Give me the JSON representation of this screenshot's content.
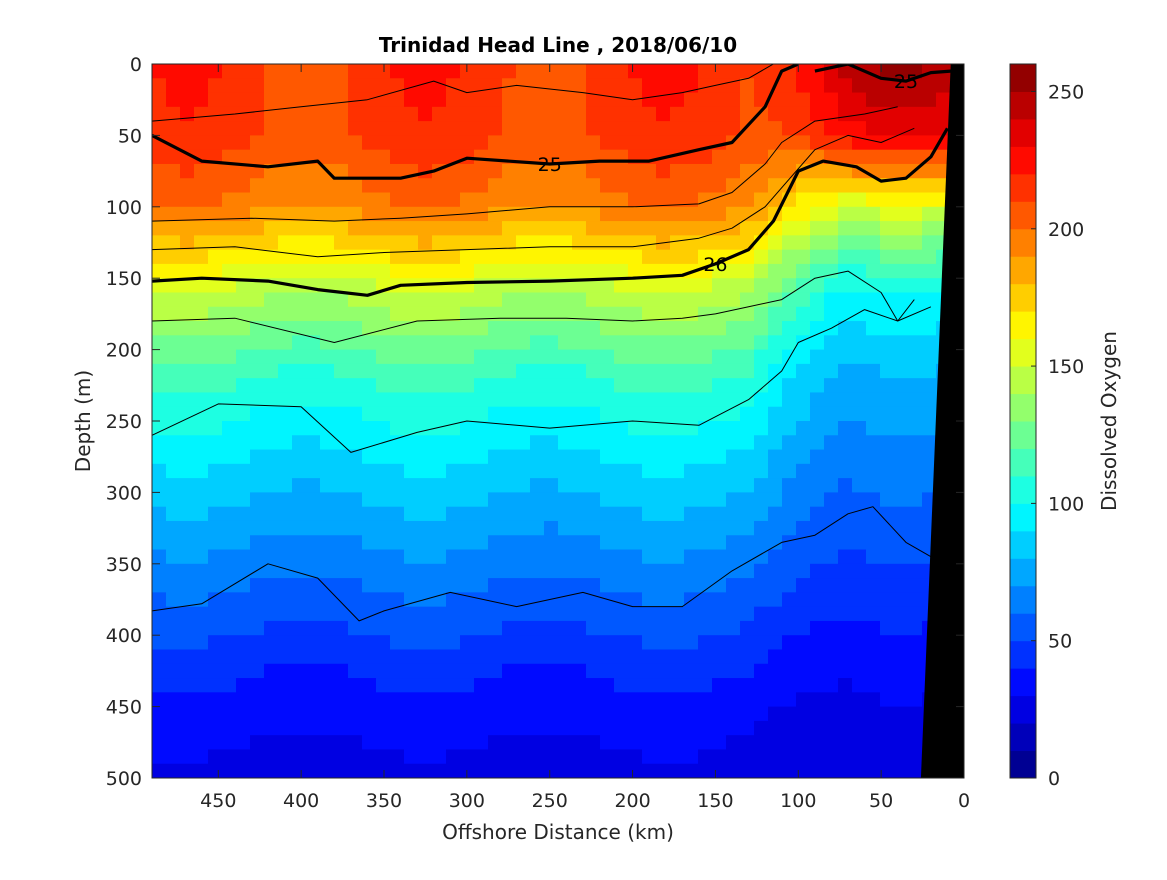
{
  "chart_data": {
    "type": "heatmap",
    "title": "Trinidad Head Line , 2018/06/10",
    "xlabel": "Offshore Distance (km)",
    "ylabel": "Depth (m)",
    "colorbar_label": "Dissolved Oxygen",
    "xlim": [
      490,
      0
    ],
    "ylim": [
      0,
      500
    ],
    "y_reversed": true,
    "x_reversed": true,
    "x_ticks": [
      450,
      400,
      350,
      300,
      250,
      200,
      150,
      100,
      50,
      0
    ],
    "y_ticks": [
      0,
      50,
      100,
      150,
      200,
      250,
      300,
      350,
      400,
      450,
      500
    ],
    "colorbar_ticks": [
      0,
      50,
      100,
      150,
      200,
      250
    ],
    "colorbar_range": [
      0,
      260
    ],
    "colorbar_levels": 26,
    "bathymetry_color": "#000000",
    "bathymetry_x": [
      26,
      8
    ],
    "oxygen_profile": {
      "depth": [
        0,
        50,
        100,
        130,
        160,
        220,
        290,
        360,
        430,
        500
      ],
      "oxygen": [
        215,
        212,
        195,
        170,
        145,
        110,
        85,
        62,
        40,
        25
      ],
      "nearshore_oxygen": [
        245,
        225,
        150,
        120,
        95,
        75,
        60,
        45,
        30,
        20
      ]
    },
    "isopycnals": [
      {
        "label": "25",
        "x": [
          490,
          460,
          420,
          390,
          380,
          340,
          320,
          300,
          250,
          220,
          190,
          160,
          140,
          120,
          110,
          100
        ],
        "depth": [
          50,
          68,
          72,
          68,
          80,
          80,
          75,
          66,
          70,
          68,
          68,
          60,
          55,
          30,
          5,
          0
        ]
      },
      {
        "label": "25",
        "x": [
          90,
          70,
          50,
          35,
          20,
          8
        ],
        "depth": [
          5,
          0,
          10,
          12,
          6,
          5
        ]
      },
      {
        "label": "26",
        "x": [
          490,
          460,
          420,
          390,
          360,
          340,
          300,
          250,
          200,
          170,
          150,
          130,
          115,
          100,
          85,
          65,
          50,
          35,
          20,
          10
        ],
        "depth": [
          152,
          150,
          152,
          158,
          162,
          155,
          153,
          152,
          150,
          148,
          140,
          130,
          110,
          75,
          68,
          72,
          82,
          80,
          65,
          45
        ]
      },
      {
        "label": "",
        "x": [
          490,
          450,
          400,
          370,
          330,
          300,
          250,
          200,
          160,
          130,
          110,
          100,
          80,
          60,
          40,
          30
        ],
        "depth": [
          260,
          238,
          240,
          272,
          258,
          250,
          255,
          250,
          253,
          235,
          215,
          195,
          185,
          172,
          180,
          165
        ]
      },
      {
        "label": "",
        "x": [
          490,
          460,
          420,
          390,
          365,
          350,
          310,
          270,
          230,
          200,
          170,
          140,
          110,
          90,
          70,
          55,
          35,
          20
        ],
        "depth": [
          383,
          378,
          350,
          360,
          390,
          383,
          370,
          380,
          370,
          380,
          380,
          355,
          335,
          330,
          315,
          310,
          335,
          345
        ]
      },
      {
        "label": "",
        "x": [
          490,
          440,
          380,
          330,
          280,
          240,
          200,
          170,
          150,
          130,
          110,
          90,
          70,
          50,
          40,
          20
        ],
        "depth": [
          180,
          178,
          195,
          180,
          178,
          178,
          180,
          178,
          175,
          170,
          165,
          150,
          145,
          160,
          180,
          170
        ]
      },
      {
        "label": "",
        "x": [
          490,
          440,
          390,
          350,
          300,
          250,
          200,
          160,
          140,
          120,
          105,
          90,
          70,
          50,
          30
        ],
        "depth": [
          130,
          128,
          135,
          132,
          130,
          128,
          128,
          122,
          115,
          100,
          80,
          60,
          50,
          55,
          45
        ]
      },
      {
        "label": "",
        "x": [
          490,
          430,
          380,
          340,
          300,
          250,
          200,
          160,
          140,
          120,
          110,
          90,
          60,
          40
        ],
        "depth": [
          110,
          108,
          110,
          108,
          105,
          100,
          100,
          98,
          90,
          70,
          55,
          40,
          35,
          30
        ]
      },
      {
        "label": "",
        "x": [
          490,
          440,
          400,
          360,
          320,
          300,
          270,
          230,
          200,
          170,
          150,
          130,
          115
        ],
        "depth": [
          40,
          35,
          30,
          25,
          12,
          20,
          15,
          20,
          25,
          20,
          15,
          10,
          0
        ]
      }
    ]
  }
}
